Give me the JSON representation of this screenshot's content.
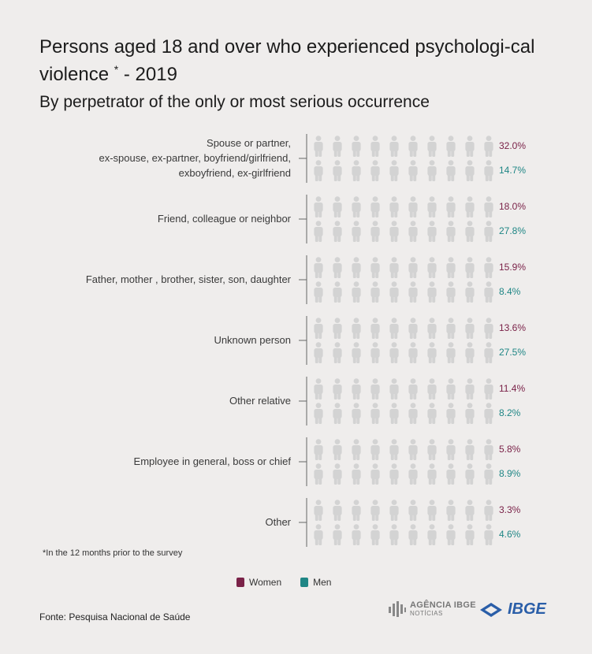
{
  "title_main": "Persons aged 18 and over who experienced psychologi-cal violence",
  "title_mark": "*",
  "title_year": "- 2019",
  "subtitle": "By perpetrator of the only or most serious occurrence",
  "footnote": "*In the 12 months prior to the survey",
  "source": "Fonte: Pesquisa Nacional de Saúde",
  "logos": {
    "agencia_line1": "AGÊNCIA IBGE",
    "agencia_line2": "NOTÍCIAS",
    "ibge": "IBGE"
  },
  "colors": {
    "women": "#7a2248",
    "men": "#1f8685",
    "empty": "#d3d3d3"
  },
  "chart_data": {
    "type": "pictograph",
    "unit": "%",
    "icons_per_row": 10,
    "percent_per_icon": 10,
    "series": [
      {
        "name": "Women"
      },
      {
        "name": "Men"
      }
    ],
    "categories": [
      {
        "label": [
          "Spouse or partner,",
          "ex-spouse, ex-partner, boyfriend/girlfriend,",
          "exboyfriend, ex-girlfriend"
        ],
        "women": 32.0,
        "men": 14.7,
        "women_label": "32.0%",
        "men_label": "14.7%"
      },
      {
        "label": [
          "Friend, colleague or neighbor"
        ],
        "women": 18.0,
        "men": 27.8,
        "women_label": "18.0%",
        "men_label": "27.8%"
      },
      {
        "label": [
          "Father, mother , brother, sister, son, daughter"
        ],
        "women": 15.9,
        "men": 8.4,
        "women_label": "15.9%",
        "men_label": "8.4%"
      },
      {
        "label": [
          "Unknown person"
        ],
        "women": 13.6,
        "men": 27.5,
        "women_label": "13.6%",
        "men_label": "27.5%"
      },
      {
        "label": [
          "Other relative"
        ],
        "women": 11.4,
        "men": 8.2,
        "women_label": "11.4%",
        "men_label": "8.2%"
      },
      {
        "label": [
          "Employee in general, boss or chief"
        ],
        "women": 5.8,
        "men": 8.9,
        "women_label": "5.8%",
        "men_label": "8.9%"
      },
      {
        "label": [
          "Other"
        ],
        "women": 3.3,
        "men": 4.6,
        "women_label": "3.3%",
        "men_label": "4.6%"
      }
    ]
  }
}
